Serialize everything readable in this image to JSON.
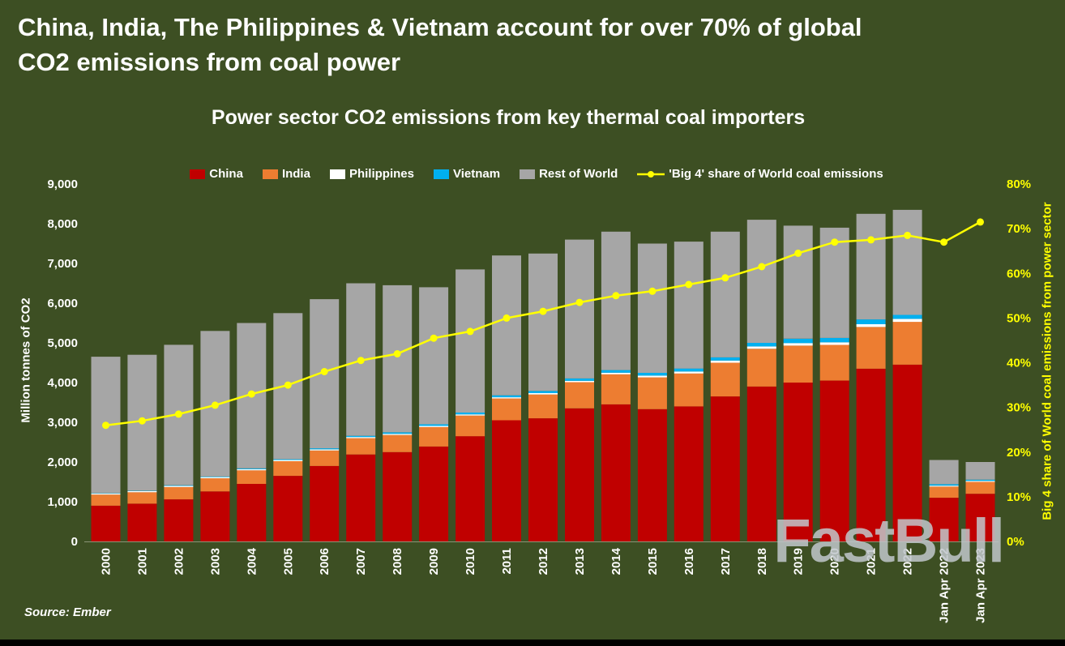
{
  "page": {
    "title_line1": "China, India, The Philippines & Vietnam account for over 70% of global",
    "title_line2": "CO2 emissions from coal power",
    "source": "Source: Ember",
    "watermark": "FastBull"
  },
  "colors": {
    "background": "#3d4f23",
    "china": "#c00000",
    "india": "#ed7d31",
    "philippines": "#ffffff",
    "vietnam": "#00b0f0",
    "rest_of_world": "#a6a6a6",
    "line": "#ffff00",
    "right_axis_text": "#ffff00",
    "left_axis_text": "#ffffff"
  },
  "chart_data": {
    "type": "bar",
    "subtype": "stacked-bar-with-line-overlay",
    "title": "Power sector CO2 emissions from key thermal coal importers",
    "ylabel_left": "Million tonnes of CO2",
    "ylabel_right": "Big 4 share of World coal emissions from power sector",
    "legend_position": "top",
    "grid": false,
    "categories": [
      "2000",
      "2001",
      "2002",
      "2003",
      "2004",
      "2005",
      "2006",
      "2007",
      "2008",
      "2009",
      "2010",
      "2011",
      "2012",
      "2013",
      "2014",
      "2015",
      "2016",
      "2017",
      "2018",
      "2019",
      "2020",
      "2021",
      "2022",
      "Jan Apr 2022",
      "Jan Apr 2023"
    ],
    "series": [
      {
        "name": "China",
        "color": "#c00000",
        "values": [
          900,
          950,
          1060,
          1260,
          1450,
          1650,
          1900,
          2190,
          2250,
          2390,
          2650,
          3050,
          3100,
          3350,
          3450,
          3330,
          3400,
          3650,
          3900,
          4000,
          4050,
          4350,
          4450,
          1100,
          1200
        ]
      },
      {
        "name": "India",
        "color": "#ed7d31",
        "values": [
          280,
          290,
          310,
          330,
          340,
          370,
          390,
          410,
          430,
          490,
          520,
          550,
          600,
          660,
          760,
          800,
          830,
          850,
          950,
          930,
          900,
          1050,
          1080,
          280,
          300
        ]
      },
      {
        "name": "Philippines",
        "color": "#ffffff",
        "values": [
          30,
          30,
          30,
          30,
          30,
          30,
          30,
          30,
          30,
          30,
          30,
          30,
          35,
          35,
          40,
          45,
          50,
          55,
          60,
          65,
          65,
          70,
          75,
          25,
          25
        ]
      },
      {
        "name": "Vietnam",
        "color": "#00b0f0",
        "values": [
          10,
          10,
          15,
          15,
          20,
          20,
          25,
          30,
          35,
          40,
          45,
          50,
          55,
          60,
          65,
          70,
          75,
          80,
          90,
          110,
          110,
          120,
          100,
          35,
          30
        ]
      },
      {
        "name": "Rest of World",
        "color": "#a6a6a6",
        "values": [
          3430,
          3420,
          3535,
          3665,
          3660,
          3680,
          3755,
          3840,
          3705,
          3450,
          3605,
          3520,
          3460,
          3495,
          3485,
          3255,
          3195,
          3165,
          3100,
          2845,
          2775,
          2660,
          2645,
          610,
          445
        ]
      }
    ],
    "line_series": {
      "name": "'Big 4' share of World coal emissions",
      "color": "#ffff00",
      "values": [
        26,
        27,
        28.5,
        30.5,
        33,
        35,
        38,
        40.5,
        42,
        45.5,
        47,
        50,
        51.5,
        53.5,
        55,
        56,
        57.5,
        59,
        61.5,
        64.5,
        67,
        67.5,
        68.5,
        67,
        71.5
      ]
    },
    "left_axis": {
      "min": 0,
      "max": 9000,
      "tick_step": 1000,
      "tick_labels": [
        "0",
        "1,000",
        "2,000",
        "3,000",
        "4,000",
        "5,000",
        "6,000",
        "7,000",
        "8,000",
        "9,000"
      ]
    },
    "right_axis": {
      "min": 0,
      "max": 80,
      "tick_step": 10,
      "tick_labels": [
        "0%",
        "10%",
        "20%",
        "30%",
        "40%",
        "50%",
        "60%",
        "70%",
        "80%"
      ]
    }
  }
}
